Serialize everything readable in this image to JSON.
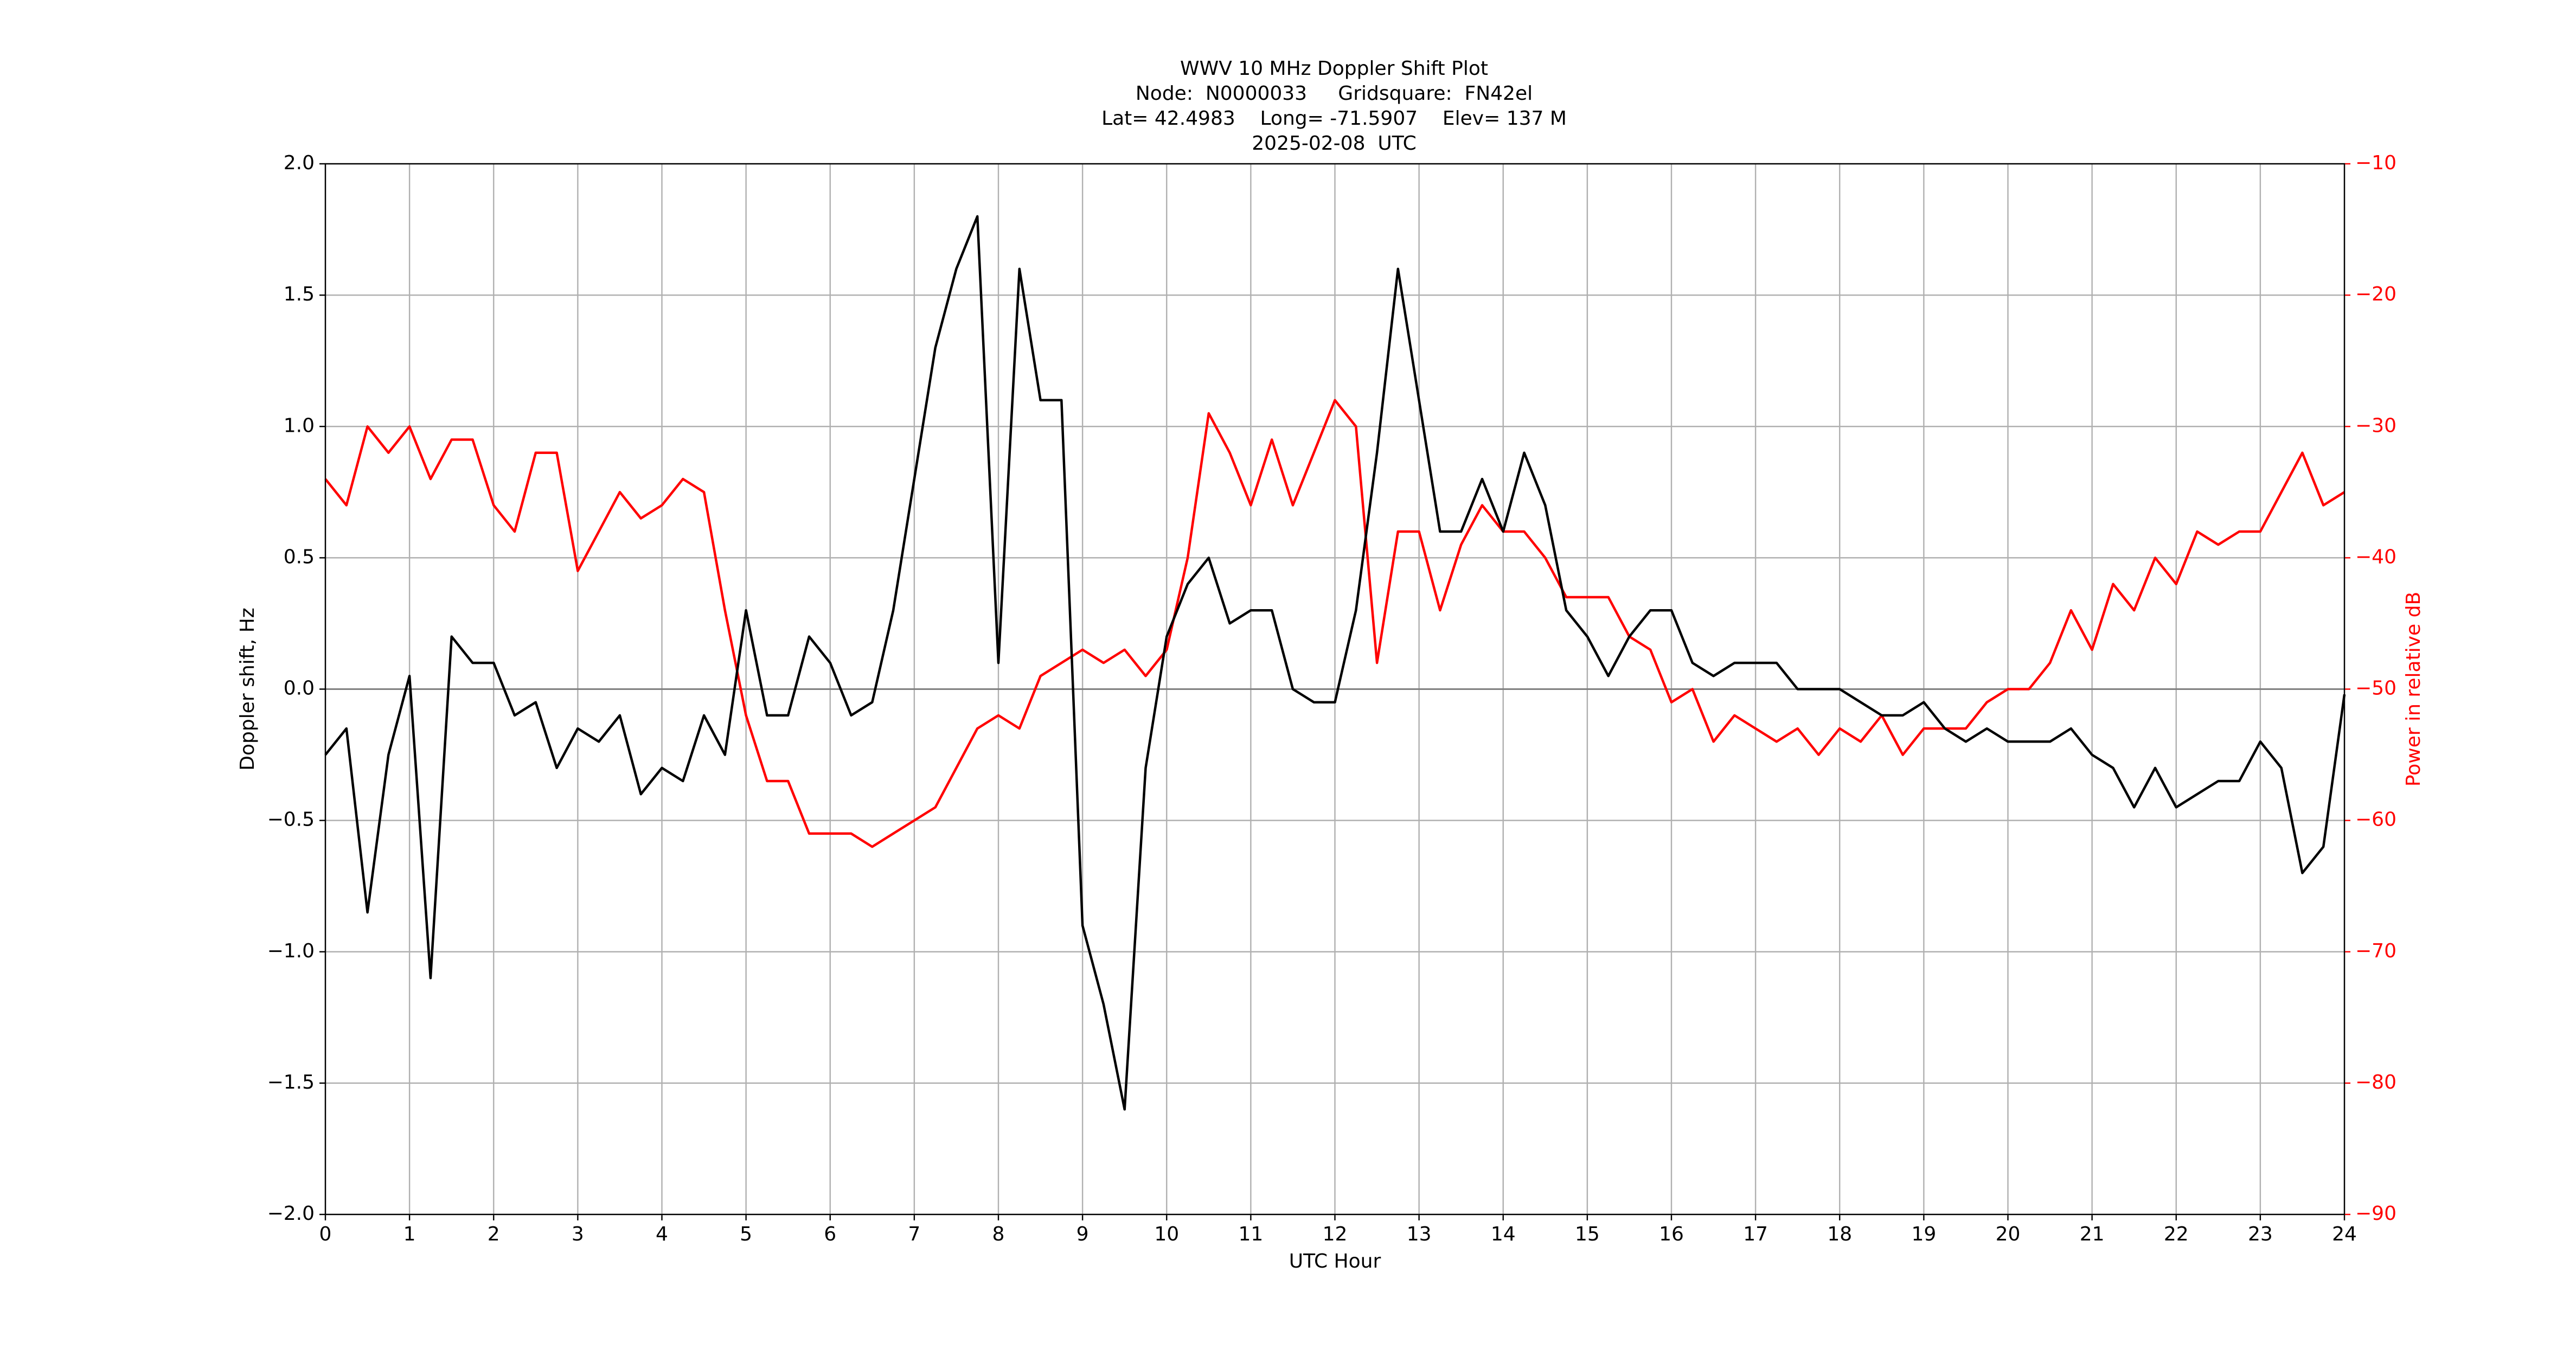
{
  "chart_data": {
    "type": "line",
    "title": [
      "WWV 10 MHz Doppler Shift Plot",
      "Node:  N0000033     Gridsquare:  FN42el",
      "Lat= 42.4983    Long= -71.5907    Elev= 137 M",
      "2025-02-08  UTC"
    ],
    "x_label": "UTC Hour",
    "y_label": "Doppler shift, Hz",
    "y2_label": "Power in relative dB",
    "x": [
      0,
      0.25,
      0.5,
      0.75,
      1,
      1.25,
      1.5,
      1.75,
      2,
      2.25,
      2.5,
      2.75,
      3,
      3.25,
      3.5,
      3.75,
      4,
      4.25,
      4.5,
      4.75,
      5,
      5.25,
      5.5,
      5.75,
      6,
      6.25,
      6.5,
      6.75,
      7,
      7.25,
      7.5,
      7.75,
      8,
      8.25,
      8.5,
      8.75,
      9,
      9.25,
      9.5,
      9.75,
      10,
      10.25,
      10.5,
      10.75,
      11,
      11.25,
      11.5,
      11.75,
      12,
      12.25,
      12.5,
      12.75,
      13,
      13.25,
      13.5,
      13.75,
      14,
      14.25,
      14.5,
      14.75,
      15,
      15.25,
      15.5,
      15.75,
      16,
      16.25,
      16.5,
      16.75,
      17,
      17.25,
      17.5,
      17.75,
      18,
      18.25,
      18.5,
      18.75,
      19,
      19.25,
      19.5,
      19.75,
      20,
      20.25,
      20.5,
      20.75,
      21,
      21.25,
      21.5,
      21.75,
      22,
      22.25,
      22.5,
      22.75,
      23,
      23.25,
      23.5,
      23.75,
      24
    ],
    "series": [
      {
        "name": "Doppler shift",
        "color": "#000000",
        "axis": "y",
        "values": [
          -0.25,
          -0.15,
          -0.85,
          -0.25,
          0.05,
          -1.1,
          0.2,
          0.1,
          0.1,
          -0.1,
          -0.05,
          -0.3,
          -0.15,
          -0.2,
          -0.1,
          -0.4,
          -0.3,
          -0.35,
          -0.1,
          -0.25,
          0.3,
          -0.1,
          -0.1,
          0.2,
          0.1,
          -0.1,
          -0.05,
          0.3,
          0.8,
          1.3,
          1.6,
          1.8,
          0.1,
          1.6,
          1.1,
          1.1,
          -0.9,
          -1.2,
          -1.6,
          -0.3,
          0.2,
          0.4,
          0.5,
          0.25,
          0.3,
          0.3,
          0.0,
          -0.05,
          -0.05,
          0.3,
          0.9,
          1.6,
          1.1,
          0.6,
          0.6,
          0.8,
          0.6,
          0.9,
          0.7,
          0.3,
          0.2,
          0.05,
          0.2,
          0.3,
          0.3,
          0.1,
          0.05,
          0.1,
          0.1,
          0.1,
          0.0,
          0.0,
          0.0,
          -0.05,
          -0.1,
          -0.1,
          -0.05,
          -0.15,
          -0.2,
          -0.15,
          -0.2,
          -0.2,
          -0.2,
          -0.15,
          -0.25,
          -0.3,
          -0.45,
          -0.3,
          -0.45,
          -0.4,
          -0.35,
          -0.35,
          -0.2,
          -0.3,
          -0.7,
          -0.6,
          -0.02
        ]
      },
      {
        "name": "Power",
        "color": "#ff0000",
        "axis": "y2",
        "values": [
          -34,
          -36,
          -30,
          -32,
          -30,
          -34,
          -31,
          -31,
          -36,
          -38,
          -32,
          -32,
          -41,
          -38,
          -35,
          -37,
          -36,
          -34,
          -35,
          -44,
          -52,
          -57,
          -57,
          -61,
          -61,
          -61,
          -62,
          -61,
          -60,
          -59,
          -56,
          -53,
          -52,
          -53,
          -49,
          -48,
          -47,
          -48,
          -47,
          -49,
          -47,
          -40,
          -29,
          -32,
          -36,
          -31,
          -36,
          -32,
          -28,
          -30,
          -48,
          -38,
          -38,
          -44,
          -39,
          -36,
          -38,
          -38,
          -40,
          -43,
          -43,
          -43,
          -46,
          -47,
          -51,
          -50,
          -54,
          -52,
          -53,
          -54,
          -53,
          -55,
          -53,
          -54,
          -52,
          -55,
          -53,
          -53,
          -53,
          -51,
          -50,
          -50,
          -48,
          -44,
          -47,
          -42,
          -44,
          -40,
          -42,
          -38,
          -39,
          -38,
          -38,
          -35,
          -32,
          -36,
          -35
        ]
      }
    ],
    "xlim": [
      0,
      24
    ],
    "xticks": [
      0,
      1,
      2,
      3,
      4,
      5,
      6,
      7,
      8,
      9,
      10,
      11,
      12,
      13,
      14,
      15,
      16,
      17,
      18,
      19,
      20,
      21,
      22,
      23,
      24
    ],
    "ylim": [
      -2.0,
      2.0
    ],
    "yticks": [
      {
        "value": -2.0,
        "label": "−2.0"
      },
      {
        "value": -1.5,
        "label": "−1.5"
      },
      {
        "value": -1.0,
        "label": "−1.0"
      },
      {
        "value": -0.5,
        "label": "−0.5"
      },
      {
        "value": 0.0,
        "label": "0.0"
      },
      {
        "value": 0.5,
        "label": "0.5"
      },
      {
        "value": 1.0,
        "label": "1.0"
      },
      {
        "value": 1.5,
        "label": "1.5"
      },
      {
        "value": 2.0,
        "label": "2.0"
      }
    ],
    "y2lim": [
      -90,
      -10
    ],
    "y2ticks": [
      {
        "value": -90,
        "label": "−90"
      },
      {
        "value": -80,
        "label": "−80"
      },
      {
        "value": -70,
        "label": "−70"
      },
      {
        "value": -60,
        "label": "−60"
      },
      {
        "value": -50,
        "label": "−50"
      },
      {
        "value": -40,
        "label": "−40"
      },
      {
        "value": -30,
        "label": "−30"
      },
      {
        "value": -20,
        "label": "−20"
      },
      {
        "value": -10,
        "label": "−10"
      }
    ],
    "y2_color": "#ff0000",
    "hline": 0,
    "grid": true
  }
}
